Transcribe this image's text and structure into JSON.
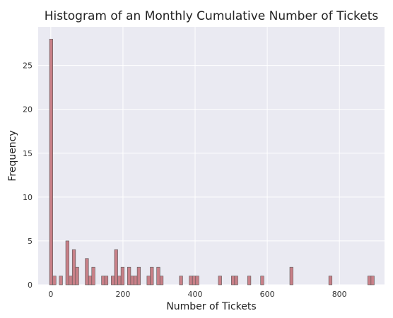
{
  "chart_data": {
    "type": "bar",
    "title": "Histogram of an Monthly Cumulative Number of Tickets",
    "xlabel": "Number of Tickets",
    "ylabel": "Frequency",
    "xlim": [
      -35,
      925
    ],
    "ylim": [
      0,
      29.4
    ],
    "xticks": [
      0,
      200,
      400,
      600,
      800
    ],
    "yticks": [
      0,
      5,
      10,
      15,
      20,
      25
    ],
    "grid": true,
    "bar_color": "#c98088",
    "plot_background": "#eaeaf2",
    "bins": [
      {
        "x": 1,
        "count": 28
      },
      {
        "x": 10,
        "count": 1
      },
      {
        "x": 28,
        "count": 1
      },
      {
        "x": 46,
        "count": 5
      },
      {
        "x": 55,
        "count": 1
      },
      {
        "x": 64,
        "count": 4
      },
      {
        "x": 73,
        "count": 2
      },
      {
        "x": 100,
        "count": 3
      },
      {
        "x": 109,
        "count": 1
      },
      {
        "x": 118,
        "count": 2
      },
      {
        "x": 145,
        "count": 1
      },
      {
        "x": 154,
        "count": 1
      },
      {
        "x": 172,
        "count": 1
      },
      {
        "x": 181,
        "count": 4
      },
      {
        "x": 190,
        "count": 1
      },
      {
        "x": 199,
        "count": 2
      },
      {
        "x": 217,
        "count": 2
      },
      {
        "x": 226,
        "count": 1
      },
      {
        "x": 235,
        "count": 1
      },
      {
        "x": 244,
        "count": 2
      },
      {
        "x": 271,
        "count": 1
      },
      {
        "x": 280,
        "count": 2
      },
      {
        "x": 298,
        "count": 2
      },
      {
        "x": 307,
        "count": 1
      },
      {
        "x": 361,
        "count": 1
      },
      {
        "x": 388,
        "count": 1
      },
      {
        "x": 397,
        "count": 1
      },
      {
        "x": 406,
        "count": 1
      },
      {
        "x": 469,
        "count": 1
      },
      {
        "x": 505,
        "count": 1
      },
      {
        "x": 514,
        "count": 1
      },
      {
        "x": 550,
        "count": 1
      },
      {
        "x": 586,
        "count": 1
      },
      {
        "x": 667,
        "count": 2
      },
      {
        "x": 775,
        "count": 1
      },
      {
        "x": 883,
        "count": 1
      },
      {
        "x": 892,
        "count": 1
      }
    ],
    "bin_width": 9
  }
}
